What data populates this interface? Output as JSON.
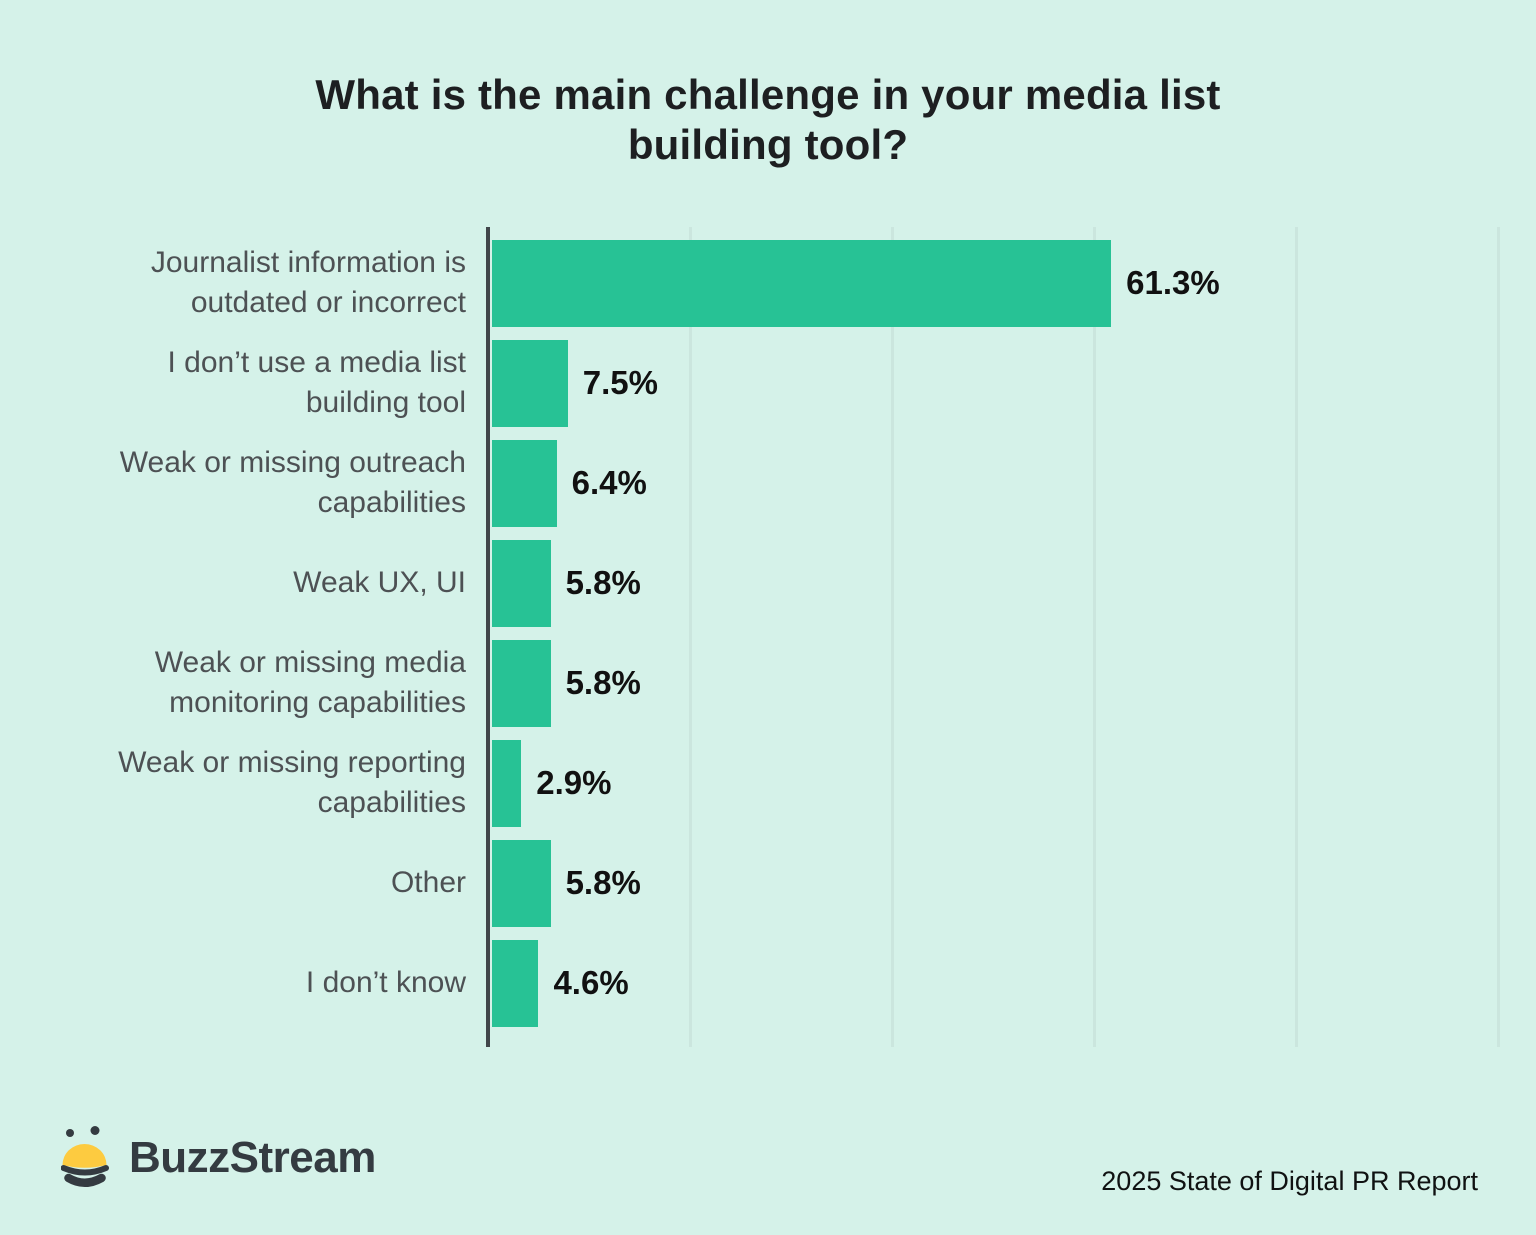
{
  "title": {
    "line1": "What is the main challenge in your media list",
    "line2": "building tool?"
  },
  "chart_data": {
    "type": "bar",
    "orientation": "horizontal",
    "title": "What is the main challenge in your media list building tool?",
    "xlabel": "",
    "ylabel": "",
    "xlim": [
      0,
      100
    ],
    "unit": "%",
    "grid": true,
    "gridlines_percent": [
      20,
      40,
      60,
      80,
      100
    ],
    "categories": [
      "Journalist information is outdated or incorrect",
      "I don’t use a media list building tool",
      "Weak or missing outreach capabilities",
      "Weak UX, UI",
      "Weak or missing media monitoring capabilities",
      "Weak or missing reporting capabilities",
      "Other",
      "I don’t know"
    ],
    "values": [
      61.3,
      7.5,
      6.4,
      5.8,
      5.8,
      2.9,
      5.8,
      4.6
    ],
    "value_labels": [
      "61.3%",
      "7.5%",
      "6.4%",
      "5.8%",
      "5.8%",
      "2.9%",
      "5.8%",
      "4.6%"
    ]
  },
  "footer": {
    "brand": "BuzzStream",
    "report": "2025 State of Digital PR Report"
  },
  "colors": {
    "background": "#d5f2e9",
    "bar": "#27c295",
    "axis": "#41464a",
    "gridline": "#cbe6de",
    "title": "#1d1f21",
    "category_label": "#4d5154",
    "value_label": "#111111",
    "logo_yellow": "#fdcb40",
    "logo_dark": "#343b41"
  }
}
